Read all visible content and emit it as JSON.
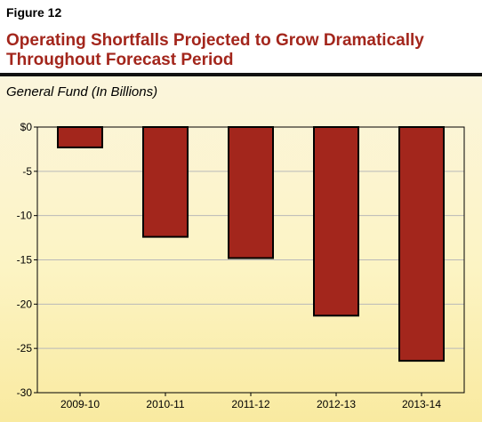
{
  "figure_label": "Figure 12",
  "title_line1": "Operating Shortfalls Projected to Grow Dramatically",
  "title_line2": "Throughout Forecast Period",
  "colors": {
    "title": "#a3261c",
    "bar": "#a3261c",
    "bar_stroke": "#000000"
  },
  "chart_data": {
    "type": "bar",
    "title": "Operating Shortfalls Projected to Grow Dramatically Throughout Forecast Period",
    "subtitle": "General Fund (In Billions)",
    "categories": [
      "2009-10",
      "2010-11",
      "2011-12",
      "2012-13",
      "2013-14"
    ],
    "values": [
      -2.3,
      -12.4,
      -14.8,
      -21.3,
      -26.4
    ],
    "ylim": [
      -30,
      0
    ],
    "yticks": [
      0,
      -5,
      -10,
      -15,
      -20,
      -25,
      -30
    ],
    "ytick_labels": [
      "$0",
      "-5",
      "-10",
      "-15",
      "-20",
      "-25",
      "-30"
    ],
    "grid": true,
    "xlabel": "",
    "ylabel": ""
  }
}
